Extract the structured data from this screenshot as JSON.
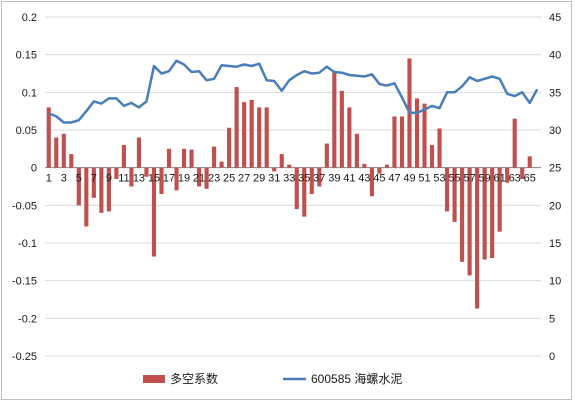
{
  "chart_data": {
    "type": "bar+line",
    "title": "",
    "x": [
      1,
      2,
      3,
      4,
      5,
      6,
      7,
      8,
      9,
      10,
      11,
      12,
      13,
      14,
      15,
      16,
      17,
      18,
      19,
      20,
      21,
      22,
      23,
      24,
      25,
      26,
      27,
      28,
      29,
      30,
      31,
      32,
      33,
      34,
      35,
      36,
      37,
      38,
      39,
      40,
      41,
      42,
      43,
      44,
      45,
      46,
      47,
      48,
      49,
      50,
      51,
      52,
      53,
      54,
      55,
      56,
      57,
      58,
      59,
      60,
      61,
      62,
      63,
      64,
      65,
      66
    ],
    "x_tick_labels": [
      "1",
      "3",
      "5",
      "7",
      "9",
      "11",
      "13",
      "15",
      "17",
      "19",
      "21",
      "23",
      "25",
      "27",
      "29",
      "31",
      "33",
      "35",
      "37",
      "39",
      "41",
      "43",
      "45",
      "47",
      "49",
      "51",
      "53",
      "55",
      "57",
      "59",
      "61",
      "63",
      "65"
    ],
    "y_left": {
      "lim": [
        -0.25,
        0.2
      ],
      "ticks": [
        "0.2",
        "0.15",
        "0.1",
        "0.05",
        "0",
        "-0.05",
        "-0.1",
        "-0.15",
        "-0.2",
        "-0.25"
      ]
    },
    "y_right": {
      "lim": [
        0,
        45
      ],
      "ticks": [
        "45",
        "40",
        "35",
        "30",
        "25",
        "20",
        "15",
        "10",
        "5",
        "0"
      ]
    },
    "grid": "horizontal",
    "legend_position": "bottom",
    "series": [
      {
        "name": "多空系数",
        "type": "bar",
        "axis": "left",
        "color": "#c0504d",
        "values": [
          0.08,
          0.04,
          0.045,
          0.018,
          -0.05,
          -0.078,
          -0.04,
          -0.06,
          -0.058,
          -0.015,
          0.03,
          -0.025,
          0.04,
          -0.012,
          -0.118,
          -0.035,
          0.025,
          -0.03,
          0.025,
          0.024,
          -0.025,
          -0.028,
          0.028,
          0.008,
          0.053,
          0.107,
          0.087,
          0.09,
          0.08,
          0.08,
          -0.005,
          0.018,
          0.004,
          -0.055,
          -0.065,
          -0.035,
          -0.025,
          0.032,
          0.128,
          0.102,
          0.08,
          0.045,
          0.005,
          -0.038,
          -0.008,
          0.004,
          0.068,
          0.068,
          0.145,
          0.092,
          0.085,
          0.03,
          0.052,
          -0.058,
          -0.072,
          -0.125,
          -0.143,
          -0.187,
          -0.122,
          -0.12,
          -0.085,
          -0.02,
          0.065,
          -0.015,
          0.015,
          0.0
        ]
      },
      {
        "name": "600585 海螺水泥",
        "type": "line",
        "axis": "right",
        "color": "#4a7ebb",
        "values": [
          32.2,
          31.8,
          31.0,
          31.0,
          31.3,
          32.5,
          33.8,
          33.5,
          34.2,
          34.2,
          33.2,
          33.6,
          33.0,
          33.8,
          38.5,
          37.5,
          37.8,
          39.2,
          38.7,
          37.7,
          37.8,
          36.6,
          36.8,
          38.6,
          38.5,
          38.4,
          38.7,
          38.5,
          38.8,
          36.6,
          36.5,
          35.2,
          36.6,
          37.3,
          37.8,
          37.5,
          37.6,
          38.4,
          37.7,
          37.6,
          37.3,
          37.2,
          37.1,
          37.4,
          36.1,
          35.9,
          36.2,
          34.3,
          32.3,
          32.3,
          32.7,
          33.2,
          32.9,
          35.0,
          35.0,
          35.8,
          37.0,
          36.5,
          36.8,
          37.1,
          36.8,
          34.8,
          34.5,
          35.0,
          33.6,
          35.4
        ]
      }
    ]
  }
}
